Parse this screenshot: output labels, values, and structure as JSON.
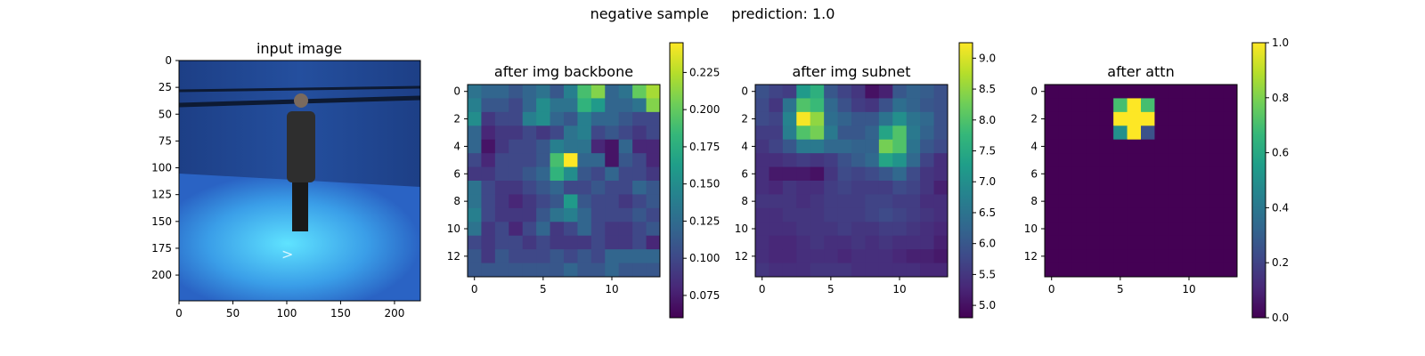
{
  "figure": {
    "suptitle": "negative sample     prediction: 1.0"
  },
  "chart_data": [
    {
      "type": "image",
      "title": "input image",
      "xlim": [
        0,
        224
      ],
      "ylim": [
        224,
        0
      ],
      "xticks": [
        0,
        50,
        100,
        150,
        200
      ],
      "yticks": [
        0,
        25,
        50,
        75,
        100,
        125,
        150,
        175,
        200
      ],
      "colorbar": false
    },
    {
      "type": "heatmap",
      "title": "after img backbone",
      "xticks": [
        0,
        5,
        10
      ],
      "yticks": [
        0,
        2,
        4,
        6,
        8,
        10,
        12
      ],
      "colorbar": {
        "ticks": [
          0.075,
          0.1,
          0.125,
          0.15,
          0.175,
          0.2,
          0.225
        ],
        "min": 0.06,
        "max": 0.245
      },
      "values": [
        [
          0.13,
          0.12,
          0.12,
          0.11,
          0.12,
          0.13,
          0.11,
          0.14,
          0.19,
          0.21,
          0.12,
          0.13,
          0.2,
          0.22
        ],
        [
          0.14,
          0.11,
          0.11,
          0.1,
          0.12,
          0.15,
          0.13,
          0.13,
          0.18,
          0.16,
          0.12,
          0.12,
          0.13,
          0.21
        ],
        [
          0.15,
          0.09,
          0.1,
          0.1,
          0.14,
          0.15,
          0.12,
          0.11,
          0.14,
          0.12,
          0.12,
          0.11,
          0.1,
          0.1
        ],
        [
          0.12,
          0.08,
          0.09,
          0.09,
          0.1,
          0.09,
          0.1,
          0.13,
          0.14,
          0.1,
          0.11,
          0.1,
          0.09,
          0.1
        ],
        [
          0.12,
          0.07,
          0.09,
          0.1,
          0.1,
          0.11,
          0.14,
          0.13,
          0.13,
          0.08,
          0.07,
          0.12,
          0.08,
          0.08
        ],
        [
          0.1,
          0.08,
          0.1,
          0.1,
          0.1,
          0.11,
          0.19,
          0.245,
          0.12,
          0.12,
          0.07,
          0.11,
          0.1,
          0.08
        ],
        [
          0.09,
          0.09,
          0.1,
          0.1,
          0.11,
          0.12,
          0.18,
          0.15,
          0.11,
          0.1,
          0.12,
          0.1,
          0.1,
          0.09
        ],
        [
          0.13,
          0.1,
          0.09,
          0.09,
          0.1,
          0.11,
          0.12,
          0.1,
          0.1,
          0.11,
          0.1,
          0.1,
          0.12,
          0.11
        ],
        [
          0.13,
          0.1,
          0.09,
          0.08,
          0.09,
          0.1,
          0.11,
          0.16,
          0.11,
          0.1,
          0.1,
          0.09,
          0.1,
          0.11
        ],
        [
          0.14,
          0.1,
          0.09,
          0.09,
          0.09,
          0.11,
          0.13,
          0.14,
          0.12,
          0.1,
          0.1,
          0.1,
          0.11,
          0.1
        ],
        [
          0.13,
          0.09,
          0.1,
          0.08,
          0.1,
          0.12,
          0.09,
          0.1,
          0.12,
          0.1,
          0.09,
          0.09,
          0.1,
          0.11
        ],
        [
          0.1,
          0.09,
          0.1,
          0.1,
          0.09,
          0.1,
          0.09,
          0.09,
          0.09,
          0.1,
          0.09,
          0.09,
          0.1,
          0.08
        ],
        [
          0.11,
          0.09,
          0.11,
          0.1,
          0.1,
          0.1,
          0.11,
          0.1,
          0.11,
          0.1,
          0.12,
          0.12,
          0.12,
          0.12
        ],
        [
          0.11,
          0.11,
          0.11,
          0.11,
          0.11,
          0.11,
          0.11,
          0.12,
          0.11,
          0.11,
          0.12,
          0.11,
          0.11,
          0.11
        ]
      ]
    },
    {
      "type": "heatmap",
      "title": "after img subnet",
      "xticks": [
        0,
        5,
        10
      ],
      "yticks": [
        0,
        2,
        4,
        6,
        8,
        10,
        12
      ],
      "colorbar": {
        "ticks": [
          5.0,
          5.5,
          6.0,
          6.5,
          7.0,
          7.5,
          8.0,
          8.5,
          9.0
        ],
        "min": 4.8,
        "max": 9.25
      },
      "values": [
        [
          5.9,
          5.7,
          5.6,
          7.2,
          7.6,
          6.0,
          5.7,
          5.5,
          5.0,
          5.2,
          6.0,
          6.2,
          6.1,
          5.9
        ],
        [
          5.8,
          5.5,
          6.5,
          8.0,
          7.8,
          6.3,
          5.9,
          5.6,
          5.5,
          5.9,
          6.4,
          6.2,
          6.0,
          5.9
        ],
        [
          5.8,
          5.7,
          6.8,
          9.2,
          8.5,
          6.4,
          6.2,
          6.0,
          6.0,
          6.5,
          7.0,
          6.5,
          6.3,
          5.9
        ],
        [
          5.6,
          5.6,
          6.7,
          8.0,
          8.3,
          6.6,
          6.0,
          6.0,
          6.2,
          7.4,
          8.0,
          6.6,
          6.2,
          5.9
        ],
        [
          5.5,
          5.7,
          6.0,
          6.6,
          6.6,
          6.3,
          6.3,
          6.2,
          6.2,
          8.3,
          8.0,
          6.5,
          6.0,
          5.8
        ],
        [
          5.4,
          5.4,
          5.5,
          5.6,
          5.5,
          5.6,
          5.9,
          6.1,
          6.3,
          7.4,
          7.1,
          6.3,
          5.7,
          5.4
        ],
        [
          5.4,
          5.1,
          5.1,
          5.1,
          5.0,
          5.5,
          5.8,
          5.7,
          5.8,
          6.0,
          6.3,
          5.8,
          5.5,
          5.4
        ],
        [
          5.4,
          5.3,
          5.5,
          5.4,
          5.4,
          5.6,
          5.7,
          5.6,
          5.6,
          5.6,
          5.8,
          5.7,
          5.5,
          5.2
        ],
        [
          5.5,
          5.5,
          5.5,
          5.4,
          5.5,
          5.6,
          5.6,
          5.6,
          5.7,
          5.7,
          5.6,
          5.6,
          5.4,
          5.4
        ],
        [
          5.4,
          5.4,
          5.5,
          5.5,
          5.5,
          5.6,
          5.6,
          5.6,
          5.7,
          5.8,
          5.7,
          5.6,
          5.5,
          5.4
        ],
        [
          5.4,
          5.4,
          5.4,
          5.5,
          5.5,
          5.5,
          5.6,
          5.5,
          5.5,
          5.6,
          5.6,
          5.5,
          5.4,
          5.3
        ],
        [
          5.4,
          5.3,
          5.3,
          5.4,
          5.5,
          5.4,
          5.4,
          5.5,
          5.4,
          5.5,
          5.4,
          5.4,
          5.4,
          5.2
        ],
        [
          5.4,
          5.3,
          5.3,
          5.4,
          5.4,
          5.4,
          5.3,
          5.4,
          5.4,
          5.4,
          5.3,
          5.2,
          5.2,
          5.1
        ],
        [
          5.5,
          5.4,
          5.4,
          5.4,
          5.5,
          5.5,
          5.5,
          5.4,
          5.4,
          5.4,
          5.4,
          5.4,
          5.3,
          5.3
        ]
      ]
    },
    {
      "type": "heatmap",
      "title": "after attn",
      "xticks": [
        0,
        5,
        10
      ],
      "yticks": [
        0,
        2,
        4,
        6,
        8,
        10,
        12
      ],
      "colorbar": {
        "ticks": [
          0.0,
          0.2,
          0.4,
          0.6,
          0.8,
          1.0
        ],
        "min": 0.0,
        "max": 1.0
      },
      "values": [
        [
          0,
          0,
          0,
          0,
          0,
          0,
          0,
          0,
          0,
          0,
          0,
          0,
          0,
          0
        ],
        [
          0,
          0,
          0,
          0,
          0,
          0.7,
          1.0,
          0.7,
          0,
          0,
          0,
          0,
          0,
          0
        ],
        [
          0,
          0,
          0,
          0,
          0,
          1.0,
          1.0,
          1.0,
          0,
          0,
          0,
          0,
          0,
          0
        ],
        [
          0,
          0,
          0,
          0,
          0,
          0.5,
          1.0,
          0.25,
          0,
          0,
          0,
          0,
          0,
          0
        ],
        [
          0,
          0,
          0,
          0,
          0,
          0,
          0,
          0,
          0,
          0,
          0,
          0,
          0,
          0
        ],
        [
          0,
          0,
          0,
          0,
          0,
          0,
          0,
          0,
          0,
          0,
          0,
          0,
          0,
          0
        ],
        [
          0,
          0,
          0,
          0,
          0,
          0,
          0,
          0,
          0,
          0,
          0,
          0,
          0,
          0
        ],
        [
          0,
          0,
          0,
          0,
          0,
          0,
          0,
          0,
          0,
          0,
          0,
          0,
          0,
          0
        ],
        [
          0,
          0,
          0,
          0,
          0,
          0,
          0,
          0,
          0,
          0,
          0,
          0,
          0,
          0
        ],
        [
          0,
          0,
          0,
          0,
          0,
          0,
          0,
          0,
          0,
          0,
          0,
          0,
          0,
          0
        ],
        [
          0,
          0,
          0,
          0,
          0,
          0,
          0,
          0,
          0,
          0,
          0,
          0,
          0,
          0
        ],
        [
          0,
          0,
          0,
          0,
          0,
          0,
          0,
          0,
          0,
          0,
          0,
          0,
          0,
          0
        ],
        [
          0,
          0,
          0,
          0,
          0,
          0,
          0,
          0,
          0,
          0,
          0,
          0,
          0,
          0
        ],
        [
          0,
          0,
          0,
          0,
          0,
          0,
          0,
          0,
          0,
          0,
          0,
          0,
          0,
          0
        ]
      ]
    }
  ]
}
